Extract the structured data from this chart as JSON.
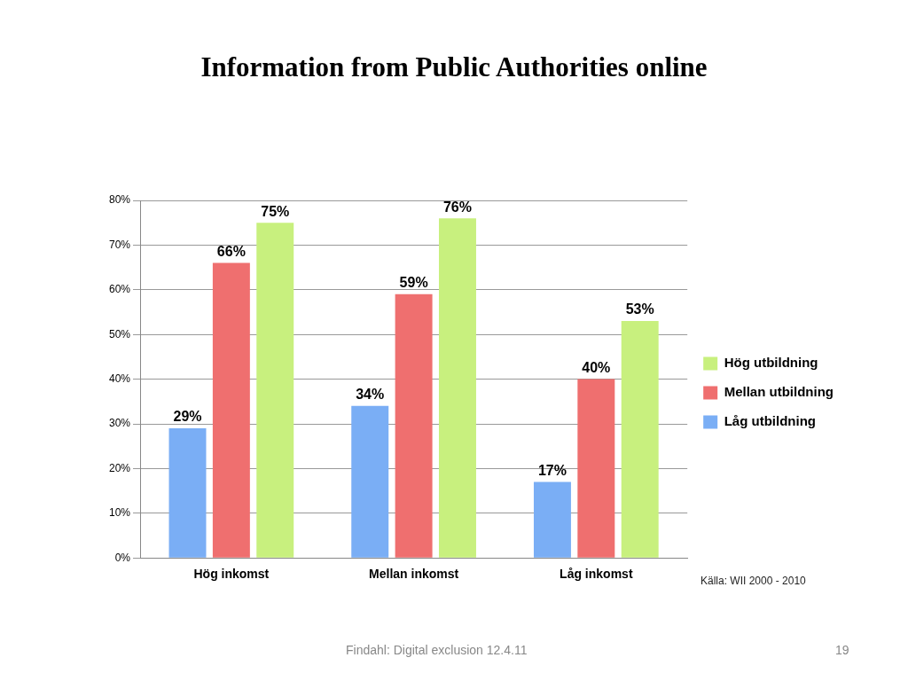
{
  "chart_data": {
    "type": "bar",
    "title": "Information from Public Authorities online",
    "categories": [
      "Hög inkomst",
      "Mellan inkomst",
      "Låg inkomst"
    ],
    "series": [
      {
        "name": "Låg utbildning",
        "color": "#7aaef5",
        "values": [
          29,
          34,
          17
        ],
        "value_labels": [
          "29%",
          "34%",
          "17%"
        ]
      },
      {
        "name": "Mellan utbildning",
        "color": "#ef6f6f",
        "values": [
          66,
          59,
          40
        ],
        "value_labels": [
          "66%",
          "59%",
          "40%"
        ]
      },
      {
        "name": "Hög utbildning",
        "color": "#c8f07e",
        "values": [
          75,
          76,
          53
        ],
        "value_labels": [
          "75%",
          "76%",
          "53%"
        ]
      }
    ],
    "ylim": [
      0,
      80
    ],
    "yticks": [
      {
        "value": 0,
        "label": "0%"
      },
      {
        "value": 10,
        "label": "10%"
      },
      {
        "value": 20,
        "label": "20%"
      },
      {
        "value": 30,
        "label": "30%"
      },
      {
        "value": 40,
        "label": "40%"
      },
      {
        "value": 50,
        "label": "50%"
      },
      {
        "value": 60,
        "label": "60%"
      },
      {
        "value": 70,
        "label": "70%"
      },
      {
        "value": 80,
        "label": "80%"
      }
    ],
    "grid": "y",
    "legend": "right",
    "annotations": [
      "Källa: WII 2000 - 2010",
      "Findahl: Digital exclusion 12.4.11",
      "19"
    ]
  }
}
